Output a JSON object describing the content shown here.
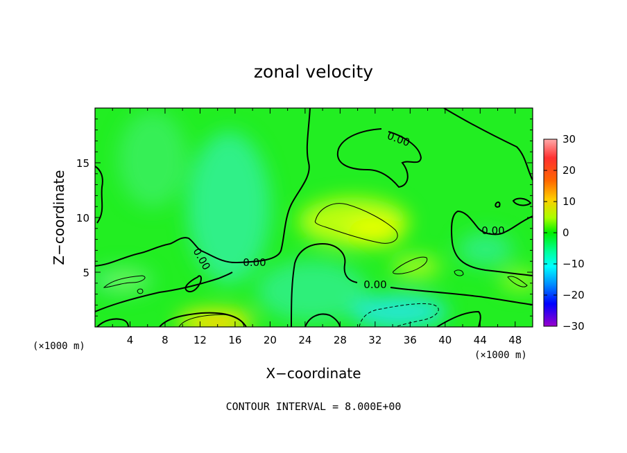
{
  "chart_data": {
    "type": "heatmap",
    "title": "zonal velocity",
    "xlabel": "X−coordinate",
    "ylabel": "Z−coordinate",
    "x_unit_left": "(×1000 m)",
    "x_unit_right": "(×1000 m)",
    "x_ticks": [
      "4",
      "8",
      "12",
      "16",
      "20",
      "24",
      "28",
      "32",
      "36",
      "40",
      "44",
      "48"
    ],
    "z_ticks": [
      "5",
      "10",
      "15"
    ],
    "xlim": [
      0,
      50
    ],
    "zlim": [
      0,
      20
    ],
    "colorbar": {
      "range": [
        -30,
        30
      ],
      "ticks": [
        "30",
        "20",
        "10",
        "0",
        "−10",
        "−20",
        "−30"
      ],
      "colors": [
        "#ffaaaa",
        "#ff0000",
        "#ff9900",
        "#ffff00",
        "#00ee00",
        "#00ffff",
        "#0000ff",
        "#9900cc"
      ]
    },
    "contour_labels": [
      "0.00",
      "0.00",
      "0.00",
      "0.00",
      "0.00",
      "0.00"
    ],
    "footer": "CONTOUR INTERVAL = 8.000E+00"
  }
}
